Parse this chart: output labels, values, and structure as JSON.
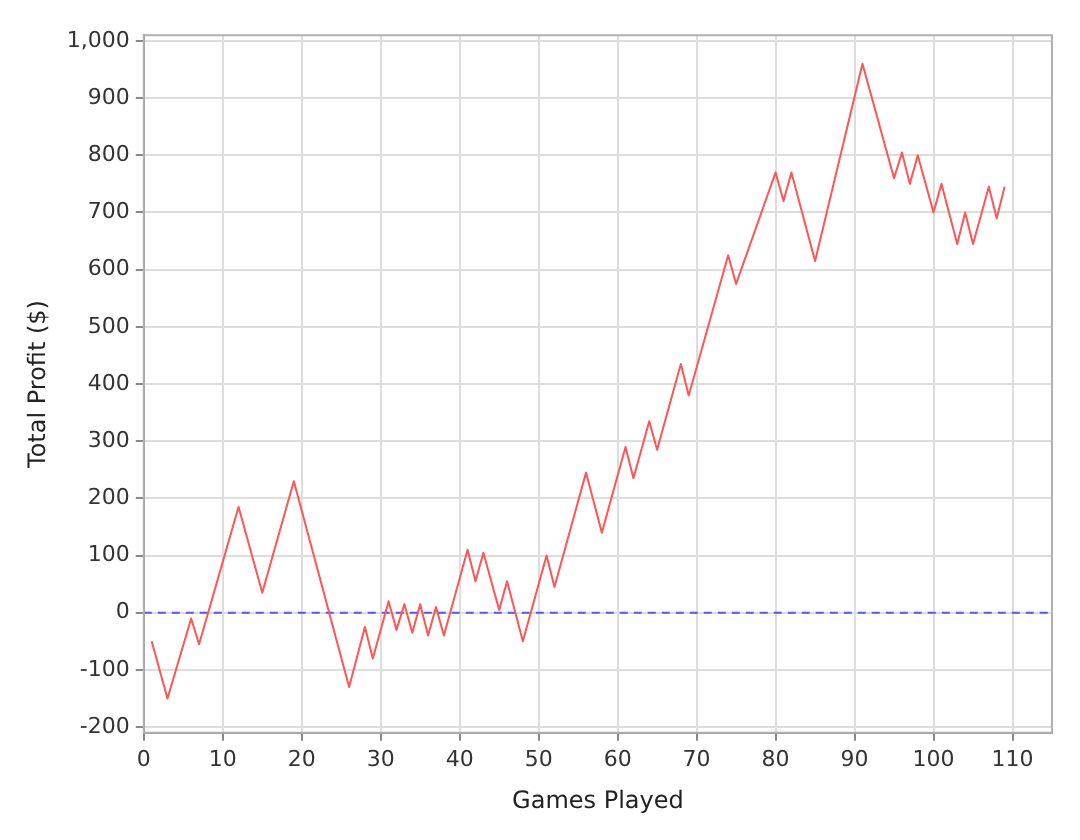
{
  "chart_data": {
    "type": "line",
    "xlabel": "Games Played",
    "ylabel": "Total Profit ($)",
    "x": [
      1,
      3,
      6,
      7,
      12,
      15,
      19,
      26,
      28,
      29,
      31,
      32,
      33,
      34,
      35,
      36,
      37,
      38,
      41,
      42,
      43,
      45,
      46,
      48,
      51,
      52,
      56,
      58,
      61,
      62,
      64,
      65,
      68,
      69,
      74,
      75,
      80,
      81,
      82,
      85,
      91,
      95,
      96,
      97,
      98,
      100,
      101,
      103,
      104,
      105,
      107,
      108,
      109
    ],
    "series": [
      {
        "color": "#ff5555",
        "values": [
          -50,
          -150,
          -10,
          -55,
          185,
          35,
          230,
          -130,
          -25,
          -80,
          20,
          -30,
          15,
          -35,
          15,
          -40,
          10,
          -40,
          110,
          55,
          105,
          5,
          55,
          -50,
          100,
          45,
          245,
          140,
          290,
          235,
          335,
          285,
          435,
          380,
          625,
          575,
          770,
          720,
          770,
          615,
          960,
          760,
          805,
          750,
          800,
          700,
          750,
          645,
          700,
          645,
          745,
          690,
          745
        ]
      }
    ],
    "xlim": [
      0,
      115
    ],
    "xticks": [
      0,
      10,
      20,
      30,
      40,
      50,
      60,
      70,
      80,
      90,
      100,
      110
    ],
    "ylim": [
      -210,
      1010
    ],
    "yticks": [
      -200,
      -100,
      0,
      100,
      200,
      300,
      400,
      500,
      600,
      700,
      800,
      900,
      {
        "value": 1000,
        "label": "1,000"
      }
    ],
    "grid": true,
    "ref_lines": [
      {
        "axis": "y",
        "value": 0,
        "color": "#5555ff",
        "line_style": "dashed"
      }
    ],
    "marker": "none",
    "line_style": "solid"
  }
}
